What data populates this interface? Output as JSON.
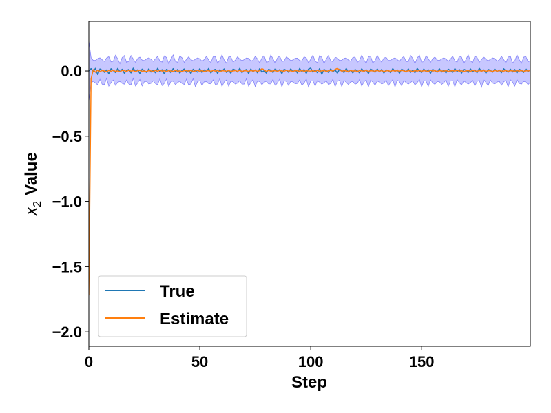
{
  "chart_data": {
    "type": "line",
    "xlabel": "Step",
    "ylabel_var": "x",
    "ylabel_sub": "2",
    "ylabel_rest": "Value",
    "xlim": [
      0,
      199
    ],
    "ylim": [
      -2.11,
      0.38
    ],
    "xticks": [
      0,
      50,
      100,
      150
    ],
    "xtick_labels": [
      "0",
      "50",
      "100",
      "150"
    ],
    "yticks": [
      0.0,
      -0.5,
      -1.0,
      -1.5,
      -2.0
    ],
    "ytick_labels": [
      "0.0",
      "−0.5",
      "−1.0",
      "−1.5",
      "−2.0"
    ],
    "legend_position": "lower-left",
    "band": {
      "center": 0.0,
      "halfwidth_start": 0.22,
      "halfwidth": 0.09,
      "color": "#0000ff",
      "opacity": 0.22,
      "edge_color": "#5b5bf5"
    },
    "series": [
      {
        "name": "True",
        "color": "#1f77b4",
        "values": [
          0.0,
          0.018,
          -0.004,
          0.02,
          -0.028,
          0.015,
          0.006,
          -0.01,
          0.008,
          -0.021,
          0.017,
          0.003,
          -0.012,
          0.019,
          -0.006,
          0.013,
          -0.017,
          0.004,
          0.011,
          -0.015,
          0.021,
          -0.003,
          0.009,
          -0.019,
          0.014,
          0.002,
          -0.011,
          0.016,
          -0.008,
          0.006,
          -0.014,
          0.02,
          -0.005,
          0.01,
          -0.022,
          0.012,
          0.004,
          -0.013,
          0.018,
          -0.007,
          0.011,
          -0.016,
          0.005,
          0.015,
          -0.01,
          0.007,
          -0.02,
          0.013,
          0.001,
          -0.009,
          0.017,
          -0.012,
          0.008,
          -0.004,
          0.019,
          -0.015,
          0.006,
          0.012,
          -0.018,
          0.009,
          -0.002,
          0.016,
          -0.011,
          0.004,
          -0.017,
          0.014,
          0.007,
          -0.008,
          0.02,
          -0.013,
          0.003,
          0.011,
          -0.019,
          0.015,
          -0.005,
          0.008,
          -0.014,
          0.018,
          -0.009,
          0.002,
          -0.016,
          0.012,
          0.006,
          -0.012,
          0.017,
          -0.003,
          0.01,
          -0.02,
          0.013,
          0.005,
          -0.01,
          0.016,
          -0.007,
          0.009,
          -0.015,
          0.019,
          -0.004,
          0.011,
          -0.018,
          0.014,
          0.022,
          -0.009,
          0.006,
          -0.013,
          0.018,
          -0.025,
          0.012,
          0.003,
          -0.011,
          0.016,
          -0.006,
          0.009,
          -0.017,
          0.013,
          0.004,
          -0.012,
          0.019,
          -0.008,
          0.007,
          -0.015,
          0.011,
          0.002,
          -0.014,
          0.017,
          -0.005,
          0.01,
          -0.019,
          0.014,
          0.006,
          -0.01,
          0.015,
          -0.007,
          0.012,
          -0.016,
          0.008,
          0.003,
          -0.013,
          0.018,
          -0.004,
          0.009,
          -0.017,
          0.013,
          0.005,
          -0.009,
          0.016,
          -0.011,
          0.007,
          -0.014,
          0.019,
          0.001,
          -0.012,
          0.015,
          -0.006,
          0.01,
          -0.018,
          0.012,
          0.004,
          -0.01,
          0.017,
          -0.008,
          0.008,
          -0.015,
          0.014,
          0.003,
          -0.011,
          0.018,
          -0.005,
          0.011,
          -0.016,
          0.013,
          0.006,
          -0.012,
          0.016,
          -0.007,
          0.009,
          -0.014,
          0.02,
          -0.003,
          0.01,
          -0.017,
          0.012,
          0.005,
          -0.009,
          0.015,
          -0.006,
          0.008,
          -0.013,
          0.017,
          0.002,
          -0.01,
          0.014,
          -0.008,
          0.011,
          -0.015,
          0.013,
          0.004,
          -0.011,
          0.016,
          -0.005,
          0.009,
          -0.012
        ]
      },
      {
        "name": "Estimate",
        "color": "#ff7f0e",
        "values": [
          -1.72,
          -0.06,
          0.01,
          -0.01,
          0.006,
          -0.004,
          0.003,
          0.0,
          -0.005,
          0.004,
          -0.002,
          0.005,
          -0.003,
          0.001,
          -0.006,
          0.004,
          0.002,
          -0.003,
          0.005,
          -0.001,
          0.003,
          -0.004,
          0.002,
          0.004,
          -0.002,
          0.0,
          -0.005,
          0.003,
          0.001,
          -0.003,
          0.004,
          -0.002,
          0.006,
          -0.001,
          0.002,
          -0.004,
          0.003,
          0.0,
          -0.003,
          0.005,
          -0.002,
          0.001,
          -0.004,
          0.003,
          0.002,
          -0.001,
          0.004,
          -0.003,
          0.0,
          0.005,
          -0.002,
          0.003,
          -0.004,
          0.001,
          0.002,
          -0.003,
          0.004,
          -0.001,
          0.003,
          -0.005,
          0.002,
          0.001,
          -0.002,
          0.004,
          -0.003,
          0.0,
          0.003,
          -0.002,
          0.005,
          -0.004,
          0.002,
          0.001,
          -0.003,
          0.004,
          -0.001,
          0.003,
          -0.002,
          0.002,
          0.018,
          0.01,
          -0.004,
          0.005,
          -0.002,
          0.001,
          0.003,
          -0.003,
          0.004,
          0.0,
          -0.002,
          0.005,
          -0.001,
          0.002,
          -0.004,
          0.003,
          0.001,
          -0.002,
          0.004,
          -0.003,
          0.002,
          0.0,
          -0.001,
          0.003,
          -0.004,
          0.005,
          -0.002,
          0.001,
          0.003,
          -0.003,
          0.002,
          0.004,
          -0.001,
          0.012,
          0.02,
          0.008,
          -0.002,
          0.003,
          0.0,
          -0.003,
          0.004,
          -0.001,
          0.002,
          -0.004,
          0.003,
          0.001,
          -0.002,
          0.005,
          -0.003,
          0.002,
          0.0,
          -0.001,
          0.004,
          -0.002,
          0.003,
          -0.004,
          0.001,
          0.002,
          -0.003,
          0.004,
          -0.001,
          0.003,
          -0.002,
          0.005,
          0.0,
          -0.003,
          0.002,
          0.001,
          -0.004,
          0.003,
          -0.001,
          0.004,
          -0.002,
          0.002,
          0.0,
          -0.003,
          0.005,
          -0.001,
          0.003,
          -0.004,
          0.002,
          0.001,
          -0.002,
          0.004,
          -0.003,
          0.0,
          0.003,
          -0.001,
          0.005,
          -0.002,
          0.002,
          -0.004,
          0.001,
          0.003,
          -0.003,
          0.004,
          0.0,
          -0.002,
          0.003,
          -0.001,
          0.004,
          -0.003,
          0.002,
          0.001,
          -0.004,
          0.005,
          -0.002,
          0.003,
          0.0,
          -0.001,
          0.004,
          -0.003,
          0.002,
          0.001,
          -0.002,
          0.003,
          -0.001,
          0.004,
          -0.003,
          0.002,
          0.0,
          0.003
        ]
      }
    ]
  }
}
